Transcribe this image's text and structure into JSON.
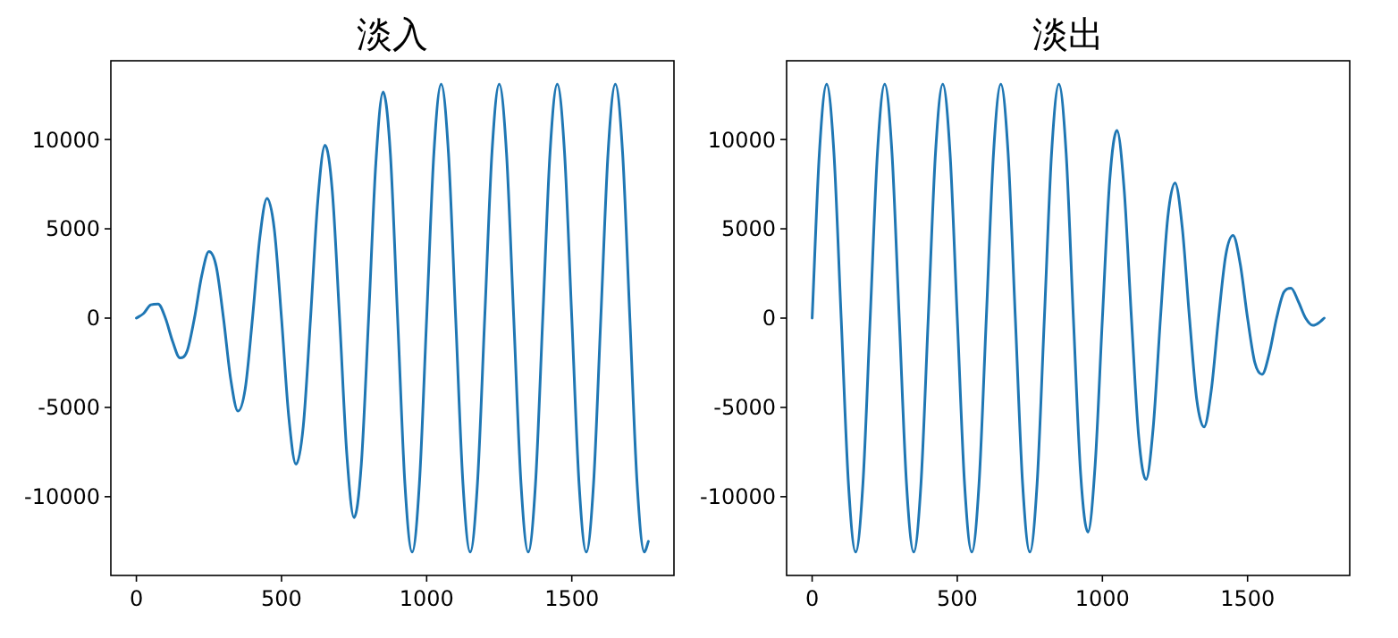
{
  "chart_data": [
    {
      "type": "line",
      "title": "淡入",
      "color": "#1f77b4",
      "xlim": [
        -88,
        1852
      ],
      "ylim": [
        -14410,
        14410
      ],
      "xticks": [
        0,
        500,
        1000,
        1500
      ],
      "yticks": [
        -10000,
        -5000,
        0,
        5000,
        10000
      ],
      "x": [
        0,
        25,
        50,
        75,
        100,
        125,
        150,
        175,
        200,
        225,
        250,
        275,
        300,
        325,
        350,
        375,
        400,
        425,
        450,
        475,
        500,
        525,
        550,
        575,
        600,
        625,
        650,
        675,
        700,
        725,
        750,
        775,
        800,
        825,
        850,
        875,
        900,
        925,
        950,
        975,
        1000,
        1025,
        1050,
        1075,
        1100,
        1125,
        1150,
        1175,
        1200,
        1225,
        1250,
        1275,
        1300,
        1325,
        1350,
        1375,
        1400,
        1425,
        1450,
        1475,
        1500,
        1525,
        1550,
        1575,
        1600,
        1625,
        1650,
        1675,
        1700,
        1725,
        1750,
        1764
      ],
      "values": [
        0,
        263,
        744,
        789,
        0,
        -1316,
        -2233,
        -1842,
        0,
        2368,
        3722,
        2894,
        0,
        -3420,
        -5210,
        -3947,
        0,
        4473,
        6699,
        4999,
        0,
        -5525,
        -8187,
        -6052,
        0,
        6578,
        9676,
        7104,
        0,
        -7630,
        -11165,
        -8157,
        0,
        8683,
        12653,
        9209,
        0,
        -9262,
        -13100,
        -9262,
        0,
        9262,
        13100,
        9262,
        0,
        -9262,
        -13100,
        -9262,
        0,
        9262,
        13100,
        9262,
        0,
        -9262,
        -13100,
        -9262,
        0,
        9262,
        13100,
        9262,
        0,
        -9262,
        -13100,
        -9262,
        0,
        9262,
        13100,
        9262,
        0,
        -9262,
        -13100,
        -12500
      ]
    },
    {
      "type": "line",
      "title": "淡出",
      "color": "#1f77b4",
      "xlim": [
        -88,
        1852
      ],
      "ylim": [
        -14410,
        14410
      ],
      "xticks": [
        0,
        500,
        1000,
        1500
      ],
      "yticks": [
        -10000,
        -5000,
        0,
        5000,
        10000
      ],
      "x": [
        0,
        25,
        50,
        75,
        100,
        125,
        150,
        175,
        200,
        225,
        250,
        275,
        300,
        325,
        350,
        375,
        400,
        425,
        450,
        475,
        500,
        525,
        550,
        575,
        600,
        625,
        650,
        675,
        700,
        725,
        750,
        775,
        800,
        825,
        850,
        875,
        900,
        925,
        950,
        975,
        1000,
        1025,
        1050,
        1075,
        1100,
        1125,
        1150,
        1175,
        1200,
        1225,
        1250,
        1275,
        1300,
        1325,
        1350,
        1375,
        1400,
        1425,
        1450,
        1475,
        1500,
        1525,
        1550,
        1575,
        1600,
        1625,
        1650,
        1675,
        1700,
        1725,
        1750,
        1764
      ],
      "values": [
        0,
        9262,
        13100,
        9262,
        0,
        -9262,
        -13100,
        -9262,
        0,
        9262,
        13100,
        9262,
        0,
        -9262,
        -13100,
        -9262,
        0,
        9262,
        13100,
        9262,
        0,
        -9262,
        -13100,
        -9262,
        0,
        9262,
        13100,
        9262,
        0,
        -9262,
        -13100,
        -9262,
        0,
        9262,
        13100,
        9251,
        0,
        -8731,
        -11981,
        -8211,
        0,
        7690,
        10509,
        7170,
        0,
        -6649,
        -9037,
        -6129,
        0,
        5609,
        7566,
        5089,
        0,
        -4569,
        -6094,
        -4048,
        0,
        3528,
        4622,
        3008,
        0,
        -2487,
        -3150,
        -1967,
        0,
        1447,
        1678,
        926,
        0,
        -406,
        -206,
        0
      ]
    }
  ]
}
